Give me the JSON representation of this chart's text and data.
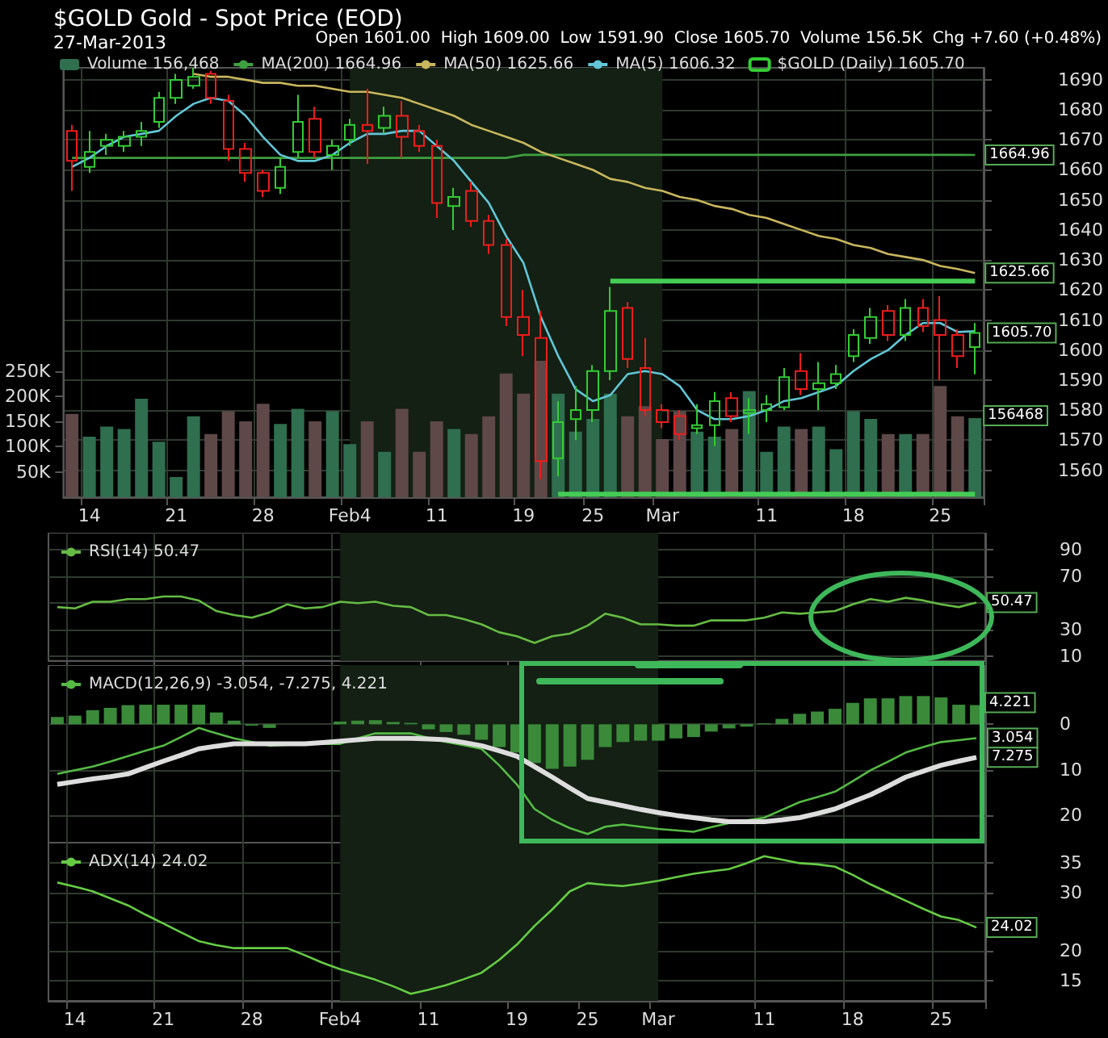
{
  "chart_data": [
    {
      "type": "candlestick",
      "title": "$GOLD Gold - Spot Price (EOD)",
      "subtitle": "27-Mar-2013",
      "annotations": [
        "Open 1601.00  High 1609.00  Low 1591.90  Close 1605.70  Volume 156.5K  Chg +7.60 (+0.48%)",
        "1605.70"
      ],
      "categories": [
        null,
        "14",
        null,
        null,
        null,
        null,
        "21",
        null,
        null,
        null,
        null,
        "28",
        null,
        null,
        null,
        null,
        "Feb4",
        null,
        null,
        null,
        null,
        "11",
        null,
        null,
        null,
        null,
        "19",
        null,
        null,
        null,
        "25",
        null,
        null,
        null,
        "Mar",
        null,
        null,
        null,
        null,
        null,
        "11",
        null,
        null,
        null,
        null,
        "18",
        null,
        null,
        null,
        null,
        "25",
        null,
        null
      ],
      "series": [
        {
          "type": "bar",
          "axis": "y2",
          "name": "Volume 156,468",
          "colors": [
            "#5e4848",
            "#2f6e4e",
            "#2f6e4e",
            "#2f6e4e",
            "#2f6e4e",
            "#2f6e4e",
            "#2f6e4e",
            "#2f6e4e",
            "#5e4848",
            "#5e4848",
            "#5e4848",
            "#5e4848",
            "#2f6e4e",
            "#2f6e4e",
            "#5e4848",
            "#2f6e4e",
            "#2f6e4e",
            "#5e4848",
            "#2f6e4e",
            "#5e4848",
            "#5e4848",
            "#5e4848",
            "#2f6e4e",
            "#5e4848",
            "#5e4848",
            "#5e4848",
            "#5e4848",
            "#5e4848",
            "#2f6e4e",
            "#2f6e4e",
            "#2f6e4e",
            "#2f6e4e",
            "#5e4848",
            "#5e4848",
            "#5e4848",
            "#5e4848",
            "#2f6e4e",
            "#2f6e4e",
            "#5e4848",
            "#2f6e4e",
            "#2f6e4e",
            "#2f6e4e",
            "#5e4848",
            "#2f6e4e",
            "#2f6e4e",
            "#2f6e4e",
            "#2f6e4e",
            "#5e4848",
            "#2f6e4e",
            "#5e4848",
            "#5e4848",
            "#5e4848",
            "#2f6e4e"
          ],
          "values": [
            165000,
            120000,
            140000,
            135000,
            195000,
            110000,
            40000,
            160000,
            125000,
            170000,
            150000,
            185000,
            145000,
            175000,
            150000,
            170000,
            105000,
            150000,
            90000,
            175000,
            90000,
            150000,
            135000,
            125000,
            160000,
            245000,
            205000,
            270000,
            205000,
            130000,
            155000,
            205000,
            160000,
            180000,
            115000,
            170000,
            130000,
            120000,
            135000,
            210000,
            90000,
            140000,
            135000,
            140000,
            95000,
            170000,
            155000,
            125000,
            125000,
            125000,
            220000,
            160000,
            156468
          ],
          "value_labels": [
            null,
            null,
            null,
            null,
            null,
            null,
            null,
            null,
            null,
            null,
            null,
            null,
            null,
            null,
            null,
            null,
            null,
            null,
            null,
            null,
            null,
            null,
            null,
            null,
            null,
            null,
            null,
            null,
            null,
            null,
            null,
            null,
            null,
            null,
            null,
            null,
            null,
            null,
            null,
            null,
            null,
            null,
            null,
            null,
            null,
            null,
            null,
            null,
            null,
            null,
            null,
            null,
            "156468"
          ]
        },
        {
          "type": "line",
          "name": "MA(200) 1664.96",
          "color": "#3fa03f",
          "values": [
            1664,
            1664,
            1664,
            1664,
            1664,
            1664,
            1664,
            1664,
            1664,
            1664,
            1664,
            1664,
            1664,
            1664,
            1664,
            1664,
            1664,
            1664,
            1664,
            1664,
            1664,
            1664,
            1664,
            1664,
            1664,
            1664,
            1665,
            1665,
            1665,
            1665,
            1665,
            1665,
            1665,
            1665,
            1665,
            1665,
            1665,
            1665,
            1665,
            1665,
            1665,
            1665,
            1665,
            1665,
            1665,
            1665,
            1665,
            1665,
            1665,
            1665,
            1665,
            1665,
            1664.96
          ],
          "value_labels": [
            null,
            null,
            null,
            null,
            null,
            null,
            null,
            null,
            null,
            null,
            null,
            null,
            null,
            null,
            null,
            null,
            null,
            null,
            null,
            null,
            null,
            null,
            null,
            null,
            null,
            null,
            null,
            null,
            null,
            null,
            null,
            null,
            null,
            null,
            null,
            null,
            null,
            null,
            null,
            null,
            null,
            null,
            null,
            null,
            null,
            null,
            null,
            null,
            null,
            null,
            null,
            null,
            "1664.96"
          ]
        },
        {
          "type": "line",
          "name": "MA(50) 1625.66",
          "color": "#c8b65e",
          "values": [
            null,
            null,
            null,
            null,
            null,
            null,
            null,
            1692,
            1691,
            1691,
            1690,
            1689,
            1689,
            1688,
            1688,
            1687,
            1686,
            1686,
            1685,
            1684,
            1682,
            1680,
            1678,
            1675,
            1673,
            1671,
            1669,
            1666,
            1664,
            1662,
            1660,
            1657,
            1656,
            1654,
            1653,
            1651,
            1650,
            1648,
            1647,
            1645,
            1644,
            1642,
            1640,
            1638,
            1637,
            1635,
            1634,
            1632,
            1631,
            1630,
            1628,
            1627,
            1625.66
          ],
          "value_labels": [
            null,
            null,
            null,
            null,
            null,
            null,
            null,
            null,
            null,
            null,
            null,
            null,
            null,
            null,
            null,
            null,
            null,
            null,
            null,
            null,
            null,
            null,
            null,
            null,
            null,
            null,
            null,
            null,
            null,
            null,
            null,
            null,
            null,
            null,
            null,
            null,
            null,
            null,
            null,
            null,
            null,
            null,
            null,
            null,
            null,
            null,
            null,
            null,
            null,
            null,
            null,
            null,
            "1625.66"
          ]
        },
        {
          "type": "line",
          "name": "MA(5) 1606.32",
          "color": "#62c6d6",
          "values": [
            1661,
            1664,
            1668,
            1671,
            1672,
            1673,
            1678,
            1682,
            1684,
            1683,
            1678,
            1671,
            1665,
            1663,
            1663,
            1665,
            1669,
            1672,
            1672,
            1673,
            1673,
            1668,
            1663,
            1656,
            1649,
            1638,
            1629,
            1611,
            1598,
            1587,
            1583,
            1585,
            1592,
            1593,
            1592,
            1588,
            1580,
            1577,
            1577,
            1578,
            1580,
            1583,
            1584,
            1586,
            1588,
            1593,
            1597,
            1600,
            1605,
            1609,
            1609,
            1606,
            1606.32
          ]
        },
        {
          "type": "line",
          "color": "#44cc55",
          "values": [
            null,
            null,
            null,
            null,
            null,
            null,
            null,
            null,
            null,
            null,
            null,
            null,
            null,
            null,
            null,
            null,
            null,
            null,
            null,
            null,
            null,
            null,
            null,
            null,
            null,
            null,
            null,
            null,
            null,
            null,
            null,
            1623,
            1623,
            1623,
            1623,
            1623,
            1623,
            1623,
            1623,
            1623,
            1623,
            1623,
            1623,
            1623,
            1623,
            1623,
            1623,
            1623,
            1623,
            1623,
            1623,
            1623,
            1623
          ]
        },
        {
          "type": "line",
          "color": "#44cc55",
          "values": [
            null,
            null,
            null,
            null,
            null,
            null,
            null,
            null,
            null,
            null,
            null,
            null,
            null,
            null,
            null,
            null,
            null,
            null,
            null,
            null,
            null,
            null,
            null,
            null,
            null,
            null,
            null,
            null,
            1552,
            1552,
            1552,
            1552,
            1552,
            1552,
            1552,
            1552,
            1552,
            1552,
            1552,
            1552,
            1552,
            1552,
            1552,
            1552,
            1552,
            1552,
            1552,
            1552,
            1552,
            1552,
            1552,
            1552,
            1552
          ]
        },
        {
          "name": "$GOLD (Daily) 1605.70",
          "colors": [
            "#ee1c1c",
            "#33cc33",
            "#33cc33",
            "#33cc33",
            "#33cc33",
            "#33cc33",
            "#33cc33",
            "#33cc33",
            "#ee1c1c",
            "#ee1c1c",
            "#ee1c1c",
            "#ee1c1c",
            "#33cc33",
            "#33cc33",
            "#ee1c1c",
            "#33cc33",
            "#33cc33",
            "#ee1c1c",
            "#33cc33",
            "#ee1c1c",
            "#ee1c1c",
            "#ee1c1c",
            "#33cc33",
            "#ee1c1c",
            "#ee1c1c",
            "#ee1c1c",
            "#ee1c1c",
            "#ee1c1c",
            "#33cc33",
            "#33cc33",
            "#33cc33",
            "#33cc33",
            "#ee1c1c",
            "#ee1c1c",
            "#ee1c1c",
            "#ee1c1c",
            "#33cc33",
            "#33cc33",
            "#ee1c1c",
            "#33cc33",
            "#33cc33",
            "#33cc33",
            "#ee1c1c",
            "#33cc33",
            "#33cc33",
            "#33cc33",
            "#33cc33",
            "#ee1c1c",
            "#33cc33",
            "#ee1c1c",
            "#ee1c1c",
            "#ee1c1c",
            "#33cc33"
          ],
          "ohlc": [
            [
              1673,
              1675,
              1653,
              1663
            ],
            [
              1661,
              1673,
              1659,
              1666
            ],
            [
              1668,
              1672,
              1665,
              1670
            ],
            [
              1668,
              1673,
              1666,
              1671
            ],
            [
              1671,
              1676,
              1668,
              1673
            ],
            [
              1676,
              1686,
              1674,
              1684
            ],
            [
              1684,
              1692,
              1682,
              1690
            ],
            [
              1688,
              1694,
              1687,
              1691
            ],
            [
              1692,
              1693,
              1682,
              1684
            ],
            [
              1683,
              1685,
              1663,
              1667
            ],
            [
              1667,
              1669,
              1656,
              1659
            ],
            [
              1659,
              1660,
              1651,
              1653
            ],
            [
              1654,
              1664,
              1652,
              1661
            ],
            [
              1666,
              1685,
              1664,
              1676
            ],
            [
              1677,
              1681,
              1664,
              1666
            ],
            [
              1665,
              1670,
              1660,
              1668
            ],
            [
              1670,
              1677,
              1668,
              1675
            ],
            [
              1675,
              1687,
              1662,
              1673
            ],
            [
              1674,
              1681,
              1672,
              1678
            ],
            [
              1678,
              1683,
              1664,
              1671
            ],
            [
              1673,
              1675,
              1666,
              1668
            ],
            [
              1668,
              1670,
              1644,
              1649
            ],
            [
              1648,
              1654,
              1640,
              1651
            ],
            [
              1653,
              1656,
              1641,
              1643
            ],
            [
              1643,
              1645,
              1632,
              1635
            ],
            [
              1635,
              1637,
              1608,
              1611
            ],
            [
              1611,
              1620,
              1598,
              1605
            ],
            [
              1604,
              1613,
              1557,
              1563
            ],
            [
              1564,
              1583,
              1558,
              1576
            ],
            [
              1577,
              1588,
              1570,
              1580
            ],
            [
              1580,
              1595,
              1576,
              1593
            ],
            [
              1593,
              1621,
              1590,
              1613
            ],
            [
              1614,
              1616,
              1594,
              1597
            ],
            [
              1594,
              1604,
              1578,
              1580
            ],
            [
              1580,
              1582,
              1574,
              1576
            ],
            [
              1578,
              1580,
              1570,
              1572
            ],
            [
              1574,
              1582,
              1572,
              1575
            ],
            [
              1575,
              1586,
              1568,
              1583
            ],
            [
              1584,
              1586,
              1576,
              1578
            ],
            [
              1579,
              1584,
              1572,
              1580
            ],
            [
              1580,
              1585,
              1576,
              1582
            ],
            [
              1581,
              1594,
              1580,
              1591
            ],
            [
              1593,
              1599,
              1585,
              1587
            ],
            [
              1587,
              1596,
              1580,
              1589
            ],
            [
              1589,
              1595,
              1587,
              1592
            ],
            [
              1598,
              1607,
              1596,
              1605
            ],
            [
              1604,
              1614,
              1602,
              1611
            ],
            [
              1613,
              1615,
              1603,
              1605
            ],
            [
              1605,
              1617,
              1603,
              1614
            ],
            [
              1614,
              1617,
              1606,
              1608
            ],
            [
              1610,
              1618,
              1590,
              1605
            ],
            [
              1605,
              1607,
              1594,
              1598
            ],
            [
              1601,
              1609,
              1591.9,
              1605.7
            ]
          ]
        }
      ],
      "bands": [
        {
          "axis": "x",
          "from": "Feb4",
          "to": "Mar",
          "color": "#132013"
        }
      ],
      "ylim": [
        1551,
        1694
      ],
      "yticks": [
        1560,
        1570,
        1580,
        1590,
        1600,
        1610,
        1620,
        1630,
        1640,
        1650,
        1660,
        1670,
        1680,
        1690
      ],
      "y2lim": [
        0,
        850000
      ],
      "y2ticks": [
        {
          "value": 50000,
          "label": "50K"
        },
        {
          "value": 100000,
          "label": "100K"
        },
        {
          "value": 150000,
          "label": "150K"
        },
        {
          "value": 200000,
          "label": "200K"
        },
        {
          "value": 250000,
          "label": "250K"
        }
      ],
      "grid": true,
      "legend": "top left",
      "marker": "none"
    },
    {
      "type": "line",
      "categories": [
        null,
        "14",
        null,
        null,
        null,
        null,
        "21",
        null,
        null,
        null,
        null,
        "28",
        null,
        null,
        null,
        null,
        "Feb4",
        null,
        null,
        null,
        null,
        "11",
        null,
        null,
        null,
        null,
        "19",
        null,
        null,
        null,
        "25",
        null,
        null,
        null,
        "Mar",
        null,
        null,
        null,
        null,
        null,
        "11",
        null,
        null,
        null,
        null,
        "18",
        null,
        null,
        null,
        null,
        "25",
        null,
        null
      ],
      "series": [
        {
          "name": "RSI(14) 50.47",
          "color": "#66bb44",
          "values": [
            47,
            46,
            51,
            51,
            53,
            53,
            55,
            55,
            52,
            44,
            41,
            39,
            43,
            49,
            46,
            47,
            51,
            50,
            51,
            48,
            47,
            41,
            41,
            38,
            34,
            28,
            25,
            20,
            25,
            27,
            33,
            42,
            39,
            34,
            34,
            33,
            33,
            37,
            37,
            37,
            39,
            43,
            42,
            43,
            44,
            49,
            53,
            51,
            54,
            52,
            49,
            47,
            50.47
          ],
          "value_labels": [
            null,
            null,
            null,
            null,
            null,
            null,
            null,
            null,
            null,
            null,
            null,
            null,
            null,
            null,
            null,
            null,
            null,
            null,
            null,
            null,
            null,
            null,
            null,
            null,
            null,
            null,
            null,
            null,
            null,
            null,
            null,
            null,
            null,
            null,
            null,
            null,
            null,
            null,
            null,
            null,
            null,
            null,
            null,
            null,
            null,
            null,
            null,
            null,
            null,
            null,
            null,
            null,
            "50.47"
          ]
        }
      ],
      "bands": [
        {
          "axis": "x",
          "from": "Feb4",
          "to": "Mar",
          "color": "#132013"
        }
      ],
      "ylim": [
        6.5,
        103
      ],
      "yticks": [
        10,
        30,
        {
          "value": 50,
          "label": null
        },
        70,
        90
      ],
      "grid": true,
      "legend": "top left",
      "marker": "none",
      "tick_labels": "y"
    },
    {
      "type": "line",
      "categories": [
        null,
        "14",
        null,
        null,
        null,
        null,
        "21",
        null,
        null,
        null,
        null,
        "28",
        null,
        null,
        null,
        null,
        "Feb4",
        null,
        null,
        null,
        null,
        "11",
        null,
        null,
        null,
        null,
        "19",
        null,
        null,
        null,
        "25",
        null,
        null,
        null,
        "Mar",
        null,
        null,
        null,
        null,
        null,
        "11",
        null,
        null,
        null,
        null,
        "18",
        null,
        null,
        null,
        null,
        "25",
        null,
        null
      ],
      "series": [
        {
          "type": "bar",
          "color": "#3a8a3a",
          "values": [
            1.6,
            1.9,
            3.1,
            3.6,
            4.2,
            4.3,
            4.3,
            4.3,
            4.3,
            2.6,
            0.8,
            -0.3,
            -0.8,
            0,
            0,
            0,
            0.6,
            0.8,
            0.9,
            0.5,
            0.3,
            -1.1,
            -1.7,
            -2.3,
            -3.4,
            -5,
            -6.2,
            -8.5,
            -9.8,
            -9.3,
            -7.8,
            -5,
            -3.9,
            -3.6,
            -3.6,
            -3.1,
            -2.8,
            -1.6,
            -0.9,
            -0.5,
            0.2,
            1.2,
            2.3,
            2.8,
            3.4,
            4.7,
            5.7,
            5.7,
            6.2,
            6.2,
            5.9,
            4.3,
            4.221
          ],
          "value_labels": [
            null,
            null,
            null,
            null,
            null,
            null,
            null,
            null,
            null,
            null,
            null,
            null,
            null,
            null,
            null,
            null,
            null,
            null,
            null,
            null,
            null,
            null,
            null,
            null,
            null,
            null,
            null,
            null,
            null,
            null,
            null,
            null,
            null,
            null,
            null,
            null,
            null,
            null,
            null,
            null,
            null,
            null,
            null,
            null,
            null,
            null,
            null,
            null,
            null,
            null,
            null,
            null,
            "4.221"
          ]
        },
        {
          "name": "MACD(12,26,9) -3.054, -7.275, 4.221",
          "color": "#55bb44",
          "values": [
            -10.9,
            -10.1,
            -9.3,
            -8.2,
            -7,
            -5.8,
            -4.7,
            -2.8,
            -0.8,
            -2,
            -3.1,
            -3.9,
            -4.7,
            -4.5,
            -4.3,
            -4.3,
            -4.3,
            -3.1,
            -2,
            -2,
            -2,
            -3,
            -3.9,
            -4.6,
            -5.4,
            -9,
            -13.2,
            -18.6,
            -21,
            -22.8,
            -24.1,
            -22.5,
            -22,
            -22.5,
            -23,
            -23.3,
            -23.6,
            -22.6,
            -21.7,
            -21.1,
            -20.5,
            -18.8,
            -17.1,
            -16,
            -14.8,
            -12.5,
            -10.1,
            -8.2,
            -6.2,
            -5,
            -3.9,
            -3.5,
            -3.054
          ]
        },
        {
          "color": "#dddddd",
          "values": [
            -13.2,
            -12.6,
            -12,
            -11.5,
            -10.9,
            -9.5,
            -8.1,
            -6.8,
            -5.4,
            -4.8,
            -4.3,
            -4.3,
            -4.3,
            -4.3,
            -4.3,
            -4,
            -3.7,
            -3.4,
            -3.1,
            -3.1,
            -3.1,
            -3.2,
            -3.4,
            -4,
            -4.7,
            -5.8,
            -7,
            -9.3,
            -11.6,
            -14,
            -16.3,
            -17.1,
            -17.9,
            -18.7,
            -19.4,
            -20,
            -20.5,
            -21,
            -21.4,
            -21.4,
            -21.4,
            -21,
            -20.5,
            -19.6,
            -18.6,
            -17,
            -15.5,
            -13.6,
            -11.6,
            -10.3,
            -9,
            -8.1,
            -7.275
          ]
        }
      ],
      "annotations": [
        "3.054",
        "7.275"
      ],
      "bands": [
        {
          "axis": "x",
          "from": "Feb4",
          "to": "Mar",
          "color": "#132013"
        }
      ],
      "ylim": [
        -26,
        13
      ],
      "yticks": [
        {
          "value": -20,
          "label": "20"
        },
        {
          "value": -10,
          "label": "10"
        },
        0
      ],
      "grid": true,
      "legend": "top left",
      "marker": "none",
      "tick_labels": "y"
    },
    {
      "type": "line",
      "categories": [
        null,
        "14",
        null,
        null,
        null,
        null,
        "21",
        null,
        null,
        null,
        null,
        "28",
        null,
        null,
        null,
        null,
        "Feb4",
        null,
        null,
        null,
        null,
        "11",
        null,
        null,
        null,
        null,
        "19",
        null,
        null,
        null,
        "25",
        null,
        null,
        null,
        "Mar",
        null,
        null,
        null,
        null,
        null,
        "11",
        null,
        null,
        null,
        null,
        "18",
        null,
        null,
        null,
        null,
        "25",
        null,
        null
      ],
      "series": [
        {
          "name": "ADX(14) 24.02",
          "color": "#66cc44",
          "values": [
            31.7,
            31,
            30.2,
            29,
            27.8,
            26.2,
            24.7,
            23.2,
            21.7,
            21,
            20.5,
            20.5,
            20.5,
            20.5,
            19.3,
            18,
            16.9,
            16,
            15.1,
            14,
            12.7,
            13.4,
            14.2,
            15.2,
            16.3,
            18.5,
            21.1,
            24.3,
            27.1,
            30.2,
            31.6,
            31.3,
            31.1,
            31.5,
            32,
            32.6,
            33.2,
            33.6,
            34,
            35,
            36.2,
            35.6,
            35,
            34.8,
            34.4,
            33,
            31.4,
            30,
            28.6,
            27.2,
            25.9,
            25.3,
            24.02
          ],
          "value_labels": [
            null,
            null,
            null,
            null,
            null,
            null,
            null,
            null,
            null,
            null,
            null,
            null,
            null,
            null,
            null,
            null,
            null,
            null,
            null,
            null,
            null,
            null,
            null,
            null,
            null,
            null,
            null,
            null,
            null,
            null,
            null,
            null,
            null,
            null,
            null,
            null,
            null,
            null,
            null,
            null,
            null,
            null,
            null,
            null,
            null,
            null,
            null,
            null,
            null,
            null,
            null,
            null,
            "24.02"
          ]
        }
      ],
      "bands": [
        {
          "axis": "x",
          "from": "Feb4",
          "to": "Mar",
          "color": "#132013"
        }
      ],
      "ylim": [
        11.5,
        38.5
      ],
      "yticks": [
        15,
        20,
        {
          "value": 25,
          "label": null
        },
        30,
        35
      ],
      "grid": true,
      "legend": "top left",
      "marker": "none"
    }
  ]
}
